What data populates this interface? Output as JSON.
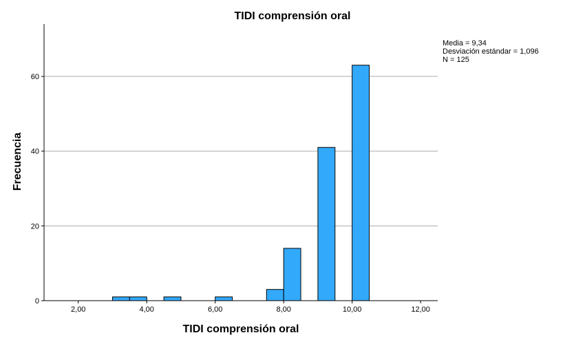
{
  "chart_data": {
    "type": "bar",
    "title": "TIDI comprensión oral",
    "xlabel": "TIDI comprensión oral",
    "ylabel": "Frecuencia",
    "xlim": [
      1.0,
      12.5
    ],
    "ylim": [
      0,
      74
    ],
    "bin_width": 0.5,
    "x_ticks": [
      {
        "value": 2,
        "label": "2,00"
      },
      {
        "value": 4,
        "label": "4,00"
      },
      {
        "value": 6,
        "label": "6,00"
      },
      {
        "value": 8,
        "label": "8,00"
      },
      {
        "value": 10,
        "label": "10,00"
      },
      {
        "value": 12,
        "label": "12,00"
      }
    ],
    "y_ticks": [
      {
        "value": 0,
        "label": "0"
      },
      {
        "value": 20,
        "label": "20"
      },
      {
        "value": 40,
        "label": "40"
      },
      {
        "value": 60,
        "label": "60"
      }
    ],
    "grid": true,
    "bars": [
      {
        "x_start": 3.0,
        "count": 1
      },
      {
        "x_start": 3.5,
        "count": 1
      },
      {
        "x_start": 4.5,
        "count": 1
      },
      {
        "x_start": 6.0,
        "count": 1
      },
      {
        "x_start": 7.5,
        "count": 3
      },
      {
        "x_start": 8.0,
        "count": 14
      },
      {
        "x_start": 9.0,
        "count": 41
      },
      {
        "x_start": 10.0,
        "count": 63
      }
    ],
    "bar_color": "#33a9fb",
    "bar_edge_color": "#000000",
    "grid_color": "#aaaaaa",
    "stats": {
      "mean": "Media = 9,34",
      "std": "Desviación estándar = 1,096",
      "n": "N = 125"
    }
  }
}
